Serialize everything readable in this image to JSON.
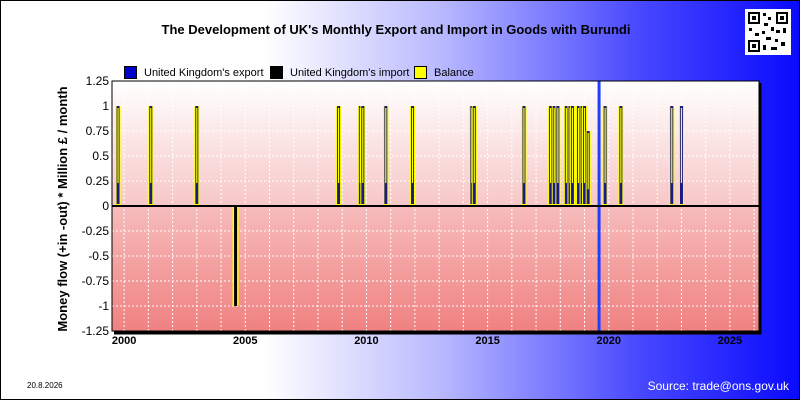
{
  "title": "The Development of UK's Monthly Export and Import in Goods with Burundi",
  "ylabel": "Money flow (+in -out) * Million £ / month",
  "source": "Source: trade@ons.gov.uk",
  "date": "20.8.2026",
  "legend": [
    {
      "label": "United Kingdom's export",
      "color": "#0000cc"
    },
    {
      "label": "United Kingdom's import",
      "color": "#000000"
    },
    {
      "label": "Balance",
      "color": "#ffff00"
    }
  ],
  "colors": {
    "export": "#1a1a8a",
    "import": "#000000",
    "balance": "#ffff00",
    "marker": "#1f3fff"
  },
  "chart_data": {
    "type": "bar",
    "xlim": [
      1999.5,
      2026.2
    ],
    "ylim": [
      -1.25,
      1.25
    ],
    "x_ticks": [
      2000,
      2005,
      2010,
      2015,
      2020,
      2025
    ],
    "y_ticks": [
      1.25,
      1,
      0.75,
      0.5,
      0.25,
      0,
      -0.25,
      -0.5,
      -0.75,
      -1,
      -1.25
    ],
    "x_tick_labels": [
      "2000",
      "2005",
      "2010",
      "2015",
      "2020",
      "2025"
    ],
    "y_tick_labels": [
      "1.25",
      "1",
      "0.75",
      "0.5",
      "0.25",
      "0",
      "-0.25",
      "-0.5",
      "-0.75",
      "-1",
      "-1.25"
    ],
    "vertical_marker_x": 2019.6,
    "series": [
      {
        "name": "United Kingdom's export",
        "points": [
          {
            "x": 1999.75,
            "y": 1
          },
          {
            "x": 2001.1,
            "y": 1
          },
          {
            "x": 2003.0,
            "y": 1
          },
          {
            "x": 2008.85,
            "y": 1
          },
          {
            "x": 2009.75,
            "y": 1
          },
          {
            "x": 2009.85,
            "y": 1
          },
          {
            "x": 2010.8,
            "y": 1
          },
          {
            "x": 2011.9,
            "y": 1
          },
          {
            "x": 2014.35,
            "y": 1
          },
          {
            "x": 2014.45,
            "y": 1
          },
          {
            "x": 2016.5,
            "y": 1
          },
          {
            "x": 2017.6,
            "y": 1
          },
          {
            "x": 2017.75,
            "y": 1
          },
          {
            "x": 2017.9,
            "y": 1
          },
          {
            "x": 2018.25,
            "y": 1
          },
          {
            "x": 2018.4,
            "y": 1
          },
          {
            "x": 2018.5,
            "y": 1
          },
          {
            "x": 2018.75,
            "y": 1
          },
          {
            "x": 2018.9,
            "y": 1
          },
          {
            "x": 2019.0,
            "y": 1
          },
          {
            "x": 2019.15,
            "y": 0.75
          },
          {
            "x": 2019.85,
            "y": 1
          },
          {
            "x": 2020.5,
            "y": 1
          },
          {
            "x": 2022.6,
            "y": 1
          },
          {
            "x": 2023.0,
            "y": 1
          }
        ]
      },
      {
        "name": "United Kingdom's import",
        "points": [
          {
            "x": 2004.6,
            "y": -1
          }
        ]
      }
    ]
  }
}
